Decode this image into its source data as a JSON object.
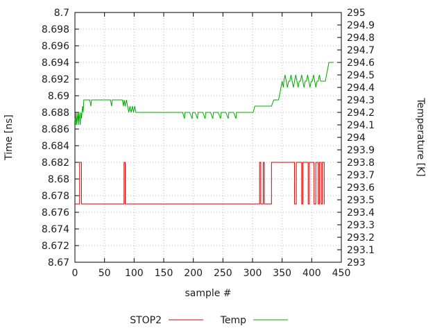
{
  "chart_data": {
    "type": "line",
    "title": "",
    "xlabel": "sample #",
    "ylabel_left": "Time [ns]",
    "ylabel_right": "Temperature [K]",
    "x_range": [
      0,
      450
    ],
    "x_ticks": [
      "0",
      "50",
      "100",
      "150",
      "200",
      "250",
      "300",
      "350",
      "400",
      "450"
    ],
    "y_left_range": [
      8.67,
      8.7
    ],
    "y_left_ticks": [
      "8.67",
      "8.672",
      "8.674",
      "8.676",
      "8.678",
      "8.68",
      "8.682",
      "8.684",
      "8.686",
      "8.688",
      "8.69",
      "8.692",
      "8.694",
      "8.696",
      "8.698",
      "8.7"
    ],
    "y_right_range": [
      293,
      295
    ],
    "y_right_ticks": [
      "293",
      "293.1",
      "293.2",
      "293.3",
      "293.4",
      "293.5",
      "293.6",
      "293.7",
      "293.8",
      "293.9",
      "294",
      "294.1",
      "294.2",
      "294.3",
      "294.4",
      "294.5",
      "294.6",
      "294.7",
      "294.8",
      "294.9",
      "295"
    ],
    "grid": true,
    "legend_position": "bottom-center",
    "colors": {
      "grid": "#b8b8b8",
      "axis": "#000000",
      "background": "#ffffff"
    },
    "series": [
      {
        "name": "STOP2",
        "axis": "left",
        "color": "#cc0000",
        "points": [
          [
            0,
            8.677
          ],
          [
            8,
            8.677
          ],
          [
            8,
            8.682
          ],
          [
            11,
            8.682
          ],
          [
            11,
            8.677
          ],
          [
            83,
            8.677
          ],
          [
            83,
            8.682
          ],
          [
            85,
            8.682
          ],
          [
            85,
            8.677
          ],
          [
            312,
            8.677
          ],
          [
            312,
            8.682
          ],
          [
            314,
            8.682
          ],
          [
            314,
            8.677
          ],
          [
            318,
            8.677
          ],
          [
            318,
            8.682
          ],
          [
            320,
            8.682
          ],
          [
            320,
            8.677
          ],
          [
            332,
            8.677
          ],
          [
            332,
            8.682
          ],
          [
            371,
            8.682
          ],
          [
            371,
            8.677
          ],
          [
            374,
            8.677
          ],
          [
            374,
            8.682
          ],
          [
            383,
            8.682
          ],
          [
            383,
            8.677
          ],
          [
            385,
            8.677
          ],
          [
            385,
            8.682
          ],
          [
            394,
            8.682
          ],
          [
            394,
            8.677
          ],
          [
            396,
            8.677
          ],
          [
            396,
            8.682
          ],
          [
            404,
            8.682
          ],
          [
            404,
            8.677
          ],
          [
            407,
            8.677
          ],
          [
            407,
            8.682
          ],
          [
            411,
            8.682
          ],
          [
            411,
            8.677
          ],
          [
            413,
            8.677
          ],
          [
            413,
            8.682
          ],
          [
            416,
            8.682
          ],
          [
            416,
            8.677
          ],
          [
            418,
            8.677
          ],
          [
            418,
            8.682
          ],
          [
            421,
            8.682
          ],
          [
            421,
            8.677
          ],
          [
            422,
            8.677
          ]
        ]
      },
      {
        "name": "Temp",
        "axis": "right",
        "color": "#00a800",
        "points": [
          [
            0,
            294.15
          ],
          [
            1,
            294.1
          ],
          [
            2,
            294.2
          ],
          [
            3,
            294.1
          ],
          [
            4,
            294.15
          ],
          [
            5,
            294.2
          ],
          [
            6,
            294.1
          ],
          [
            7,
            294.2
          ],
          [
            8,
            294.15
          ],
          [
            9,
            294.1
          ],
          [
            10,
            294.2
          ],
          [
            11,
            294.15
          ],
          [
            12,
            294.2
          ],
          [
            13,
            294.25
          ],
          [
            14,
            294.2
          ],
          [
            15,
            294.3
          ],
          [
            17,
            294.3
          ],
          [
            20,
            294.3
          ],
          [
            23,
            294.3
          ],
          [
            25,
            294.3
          ],
          [
            27,
            294.25
          ],
          [
            28,
            294.3
          ],
          [
            32,
            294.3
          ],
          [
            36,
            294.3
          ],
          [
            40,
            294.3
          ],
          [
            44,
            294.3
          ],
          [
            48,
            294.3
          ],
          [
            52,
            294.3
          ],
          [
            56,
            294.3
          ],
          [
            60,
            294.3
          ],
          [
            62,
            294.25
          ],
          [
            63,
            294.3
          ],
          [
            68,
            294.3
          ],
          [
            72,
            294.3
          ],
          [
            76,
            294.3
          ],
          [
            80,
            294.3
          ],
          [
            82,
            294.25
          ],
          [
            83,
            294.3
          ],
          [
            85,
            294.25
          ],
          [
            87,
            294.3
          ],
          [
            89,
            294.25
          ],
          [
            91,
            294.2
          ],
          [
            93,
            294.25
          ],
          [
            95,
            294.2
          ],
          [
            97,
            294.25
          ],
          [
            99,
            294.2
          ],
          [
            101,
            294.25
          ],
          [
            103,
            294.2
          ],
          [
            106,
            294.2
          ],
          [
            110,
            294.2
          ],
          [
            114,
            294.2
          ],
          [
            118,
            294.2
          ],
          [
            122,
            294.2
          ],
          [
            126,
            294.2
          ],
          [
            130,
            294.2
          ],
          [
            134,
            294.2
          ],
          [
            138,
            294.2
          ],
          [
            142,
            294.2
          ],
          [
            146,
            294.2
          ],
          [
            150,
            294.2
          ],
          [
            154,
            294.2
          ],
          [
            158,
            294.2
          ],
          [
            162,
            294.2
          ],
          [
            166,
            294.2
          ],
          [
            170,
            294.2
          ],
          [
            174,
            294.2
          ],
          [
            178,
            294.2
          ],
          [
            182,
            294.2
          ],
          [
            185,
            294.15
          ],
          [
            186,
            294.2
          ],
          [
            190,
            294.2
          ],
          [
            194,
            294.2
          ],
          [
            198,
            294.15
          ],
          [
            199,
            294.2
          ],
          [
            203,
            294.2
          ],
          [
            207,
            294.15
          ],
          [
            208,
            294.2
          ],
          [
            212,
            294.2
          ],
          [
            216,
            294.2
          ],
          [
            220,
            294.15
          ],
          [
            221,
            294.2
          ],
          [
            225,
            294.2
          ],
          [
            229,
            294.2
          ],
          [
            233,
            294.15
          ],
          [
            234,
            294.2
          ],
          [
            238,
            294.2
          ],
          [
            242,
            294.2
          ],
          [
            246,
            294.15
          ],
          [
            247,
            294.2
          ],
          [
            251,
            294.2
          ],
          [
            255,
            294.2
          ],
          [
            259,
            294.15
          ],
          [
            260,
            294.2
          ],
          [
            264,
            294.2
          ],
          [
            268,
            294.2
          ],
          [
            272,
            294.15
          ],
          [
            273,
            294.2
          ],
          [
            277,
            294.2
          ],
          [
            281,
            294.2
          ],
          [
            285,
            294.2
          ],
          [
            289,
            294.2
          ],
          [
            293,
            294.2
          ],
          [
            297,
            294.2
          ],
          [
            301,
            294.2
          ],
          [
            304,
            294.25
          ],
          [
            308,
            294.25
          ],
          [
            312,
            294.25
          ],
          [
            316,
            294.25
          ],
          [
            320,
            294.25
          ],
          [
            324,
            294.25
          ],
          [
            328,
            294.25
          ],
          [
            332,
            294.25
          ],
          [
            336,
            294.3
          ],
          [
            340,
            294.3
          ],
          [
            344,
            294.3
          ],
          [
            346,
            294.35
          ],
          [
            348,
            294.4
          ],
          [
            350,
            294.45
          ],
          [
            352,
            294.4
          ],
          [
            353,
            294.45
          ],
          [
            355,
            294.5
          ],
          [
            357,
            294.45
          ],
          [
            359,
            294.4
          ],
          [
            361,
            294.45
          ],
          [
            363,
            294.45
          ],
          [
            365,
            294.5
          ],
          [
            367,
            294.45
          ],
          [
            369,
            294.4
          ],
          [
            371,
            294.45
          ],
          [
            373,
            294.5
          ],
          [
            375,
            294.45
          ],
          [
            377,
            294.4
          ],
          [
            379,
            294.45
          ],
          [
            381,
            294.45
          ],
          [
            383,
            294.5
          ],
          [
            385,
            294.45
          ],
          [
            387,
            294.4
          ],
          [
            389,
            294.45
          ],
          [
            391,
            294.45
          ],
          [
            393,
            294.5
          ],
          [
            395,
            294.45
          ],
          [
            397,
            294.4
          ],
          [
            399,
            294.45
          ],
          [
            401,
            294.45
          ],
          [
            403,
            294.5
          ],
          [
            405,
            294.45
          ],
          [
            407,
            294.4
          ],
          [
            409,
            294.45
          ],
          [
            411,
            294.45
          ],
          [
            413,
            294.5
          ],
          [
            415,
            294.45
          ],
          [
            417,
            294.45
          ],
          [
            419,
            294.45
          ],
          [
            421,
            294.45
          ],
          [
            423,
            294.45
          ],
          [
            425,
            294.5
          ],
          [
            427,
            294.55
          ],
          [
            429,
            294.6
          ],
          [
            432,
            294.6
          ],
          [
            435,
            294.6
          ],
          [
            437,
            294.6
          ]
        ]
      }
    ]
  }
}
